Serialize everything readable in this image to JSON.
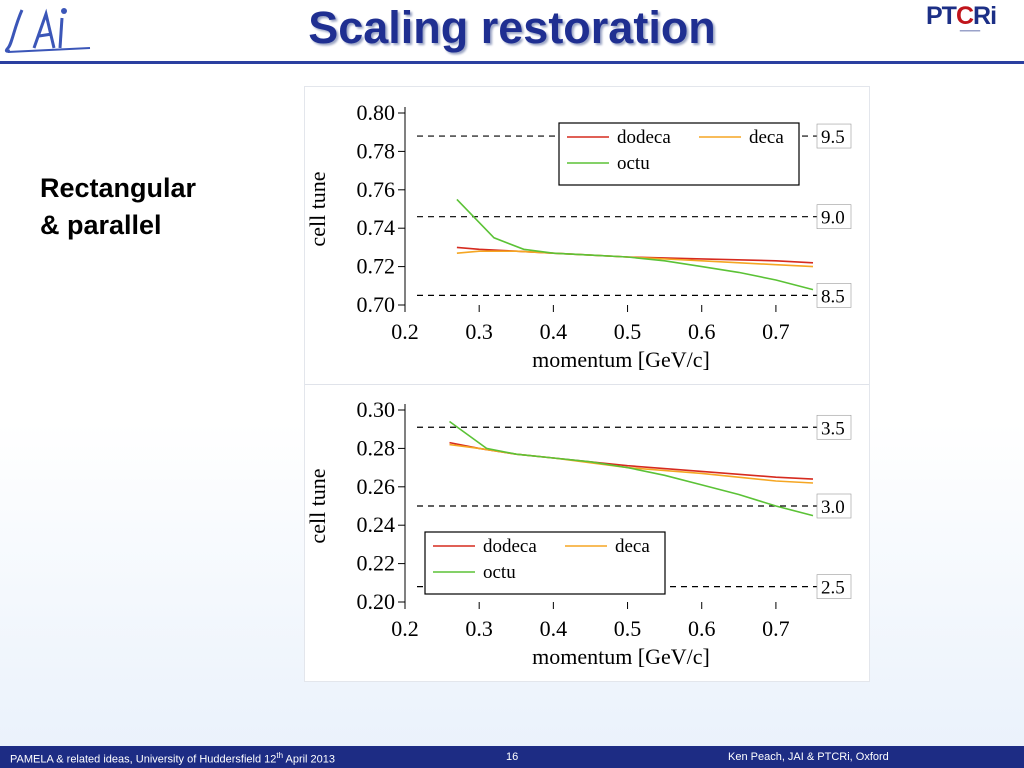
{
  "slide": {
    "title": "Scaling restoration",
    "logo_left": "JAI",
    "logo_right": "PTCRi",
    "bullet": "Rectangular\n& parallel",
    "footer": {
      "left_main": "PAMELA & related ideas, University of Huddersfield  12",
      "left_sup": "th",
      "left_end": " April 2013",
      "page": "16",
      "right": "Ken Peach, JAI  & PTCRi, Oxford"
    }
  },
  "colors": {
    "dodeca": "#d62b1f",
    "deca": "#f5a623",
    "octu": "#5bc236",
    "title": "#1f2f91",
    "footer_bg": "#1d2c84"
  },
  "chart_data": [
    {
      "type": "line",
      "xlabel": "momentum [GeV/c]",
      "ylabel": "cell tune",
      "xlim": [
        0.2,
        0.75
      ],
      "ylim": [
        0.7,
        0.8
      ],
      "xticks": [
        "0.2",
        "0.3",
        "0.4",
        "0.5",
        "0.6",
        "0.7"
      ],
      "yticks": [
        "0.70",
        "0.72",
        "0.74",
        "0.76",
        "0.78",
        "0.80"
      ],
      "legend": "top-right",
      "reference_lines": [
        {
          "label": "9.5",
          "y": 0.788
        },
        {
          "label": "9.0",
          "y": 0.746
        },
        {
          "label": "8.5",
          "y": 0.705
        }
      ],
      "series": [
        {
          "name": "dodeca",
          "x": [
            0.27,
            0.3,
            0.35,
            0.4,
            0.5,
            0.6,
            0.7,
            0.75
          ],
          "y": [
            0.73,
            0.729,
            0.728,
            0.727,
            0.725,
            0.724,
            0.723,
            0.722
          ]
        },
        {
          "name": "deca",
          "x": [
            0.27,
            0.3,
            0.35,
            0.4,
            0.5,
            0.6,
            0.7,
            0.75
          ],
          "y": [
            0.727,
            0.728,
            0.728,
            0.727,
            0.725,
            0.723,
            0.721,
            0.72
          ]
        },
        {
          "name": "octu",
          "x": [
            0.27,
            0.32,
            0.36,
            0.4,
            0.45,
            0.5,
            0.55,
            0.6,
            0.65,
            0.7,
            0.75
          ],
          "y": [
            0.755,
            0.735,
            0.729,
            0.727,
            0.726,
            0.725,
            0.723,
            0.72,
            0.717,
            0.713,
            0.708
          ]
        }
      ]
    },
    {
      "type": "line",
      "xlabel": "momentum [GeV/c]",
      "ylabel": "cell tune",
      "xlim": [
        0.2,
        0.75
      ],
      "ylim": [
        0.2,
        0.3
      ],
      "xticks": [
        "0.2",
        "0.3",
        "0.4",
        "0.5",
        "0.6",
        "0.7"
      ],
      "yticks": [
        "0.20",
        "0.22",
        "0.24",
        "0.26",
        "0.28",
        "0.30"
      ],
      "legend": "bottom-left",
      "reference_lines": [
        {
          "label": "3.5",
          "y": 0.291
        },
        {
          "label": "3.0",
          "y": 0.25
        },
        {
          "label": "2.5",
          "y": 0.208
        }
      ],
      "series": [
        {
          "name": "dodeca",
          "x": [
            0.26,
            0.3,
            0.35,
            0.4,
            0.5,
            0.6,
            0.7,
            0.75
          ],
          "y": [
            0.283,
            0.28,
            0.277,
            0.275,
            0.271,
            0.268,
            0.265,
            0.264
          ]
        },
        {
          "name": "deca",
          "x": [
            0.26,
            0.3,
            0.35,
            0.4,
            0.5,
            0.6,
            0.7,
            0.75
          ],
          "y": [
            0.282,
            0.28,
            0.277,
            0.275,
            0.27,
            0.267,
            0.263,
            0.262
          ]
        },
        {
          "name": "octu",
          "x": [
            0.26,
            0.31,
            0.35,
            0.4,
            0.45,
            0.5,
            0.55,
            0.6,
            0.65,
            0.7,
            0.75
          ],
          "y": [
            0.294,
            0.28,
            0.277,
            0.275,
            0.273,
            0.27,
            0.266,
            0.261,
            0.256,
            0.25,
            0.245
          ]
        }
      ]
    }
  ]
}
